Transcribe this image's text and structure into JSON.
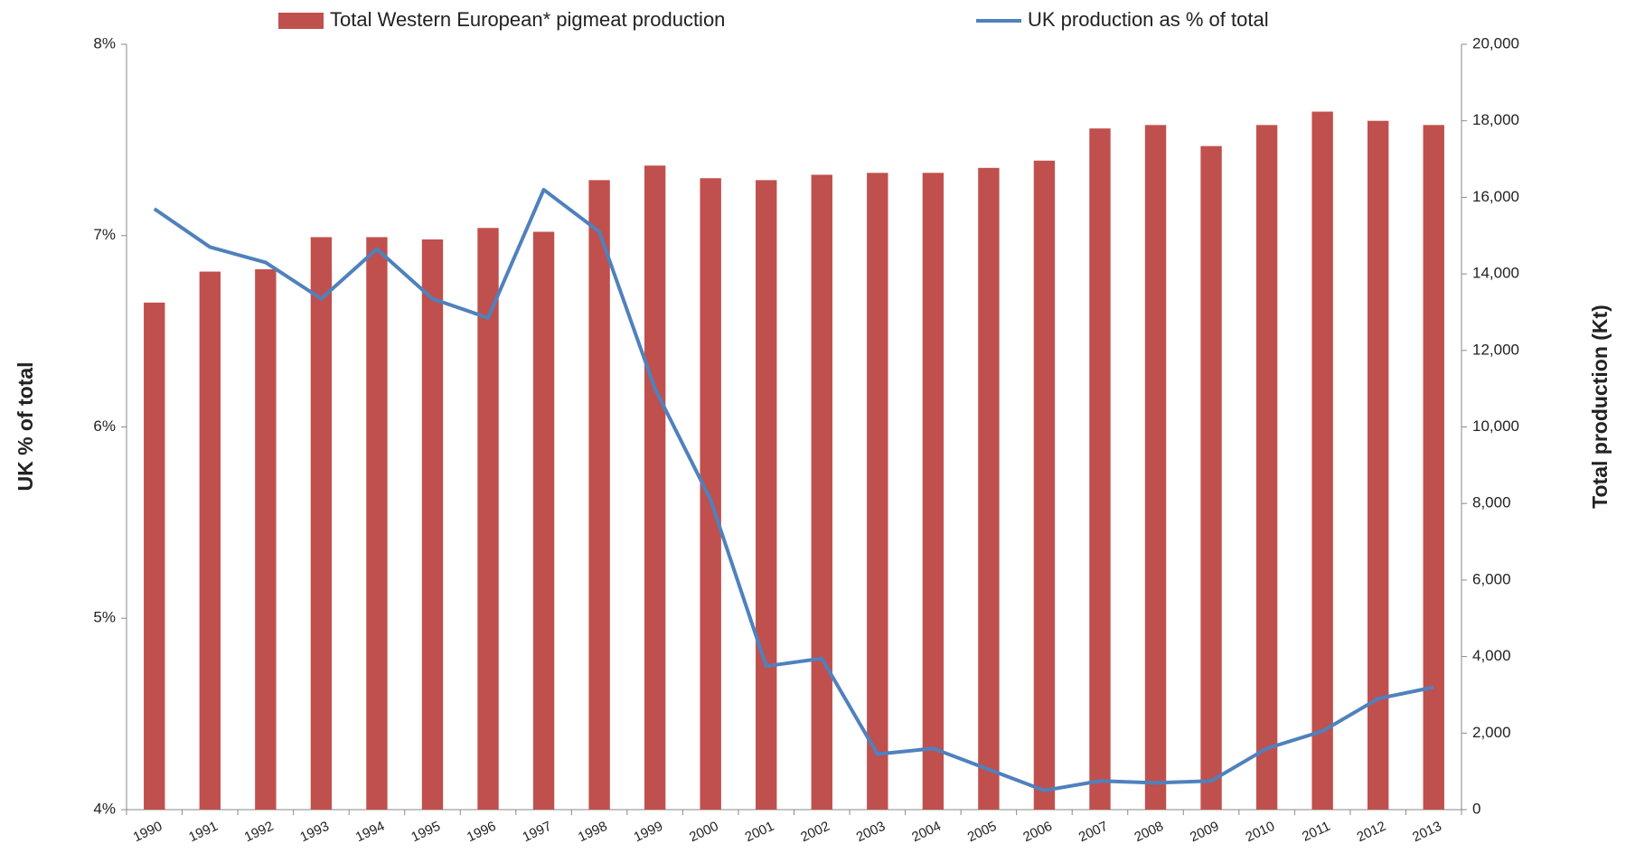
{
  "chart_data": {
    "type": "bar-line",
    "categories": [
      "1990",
      "1991",
      "1992",
      "1993",
      "1994",
      "1995",
      "1996",
      "1997",
      "1998",
      "1999",
      "2000",
      "2001",
      "2002",
      "2003",
      "2004",
      "2005",
      "2006",
      "2007",
      "2008",
      "2009",
      "2010",
      "2011",
      "2012",
      "2013"
    ],
    "series": [
      {
        "name": "Total Western European* pigmeat production",
        "type": "bar",
        "axis": "y2",
        "color": "#c0504d",
        "values": [
          13250,
          14060,
          14120,
          14960,
          14960,
          14900,
          15200,
          15100,
          16450,
          16830,
          16500,
          16450,
          16590,
          16640,
          16640,
          16770,
          16960,
          17800,
          17890,
          17340,
          17890,
          18240,
          18000,
          17890
        ]
      },
      {
        "name": "UK production as % of total",
        "type": "line",
        "axis": "y",
        "color": "#4f81bd",
        "values": [
          7.14,
          6.94,
          6.86,
          6.67,
          6.93,
          6.67,
          6.57,
          7.24,
          7.02,
          6.2,
          5.62,
          4.75,
          4.79,
          4.29,
          4.32,
          4.21,
          4.1,
          4.15,
          4.14,
          4.15,
          4.32,
          4.41,
          4.58,
          4.64
        ]
      }
    ],
    "ylabel": "UK % of total",
    "y2label": "Total production (Kt)",
    "ylim": [
      4,
      8
    ],
    "yticks": [
      {
        "value": 4,
        "label": "4%"
      },
      {
        "value": 5,
        "label": "5%"
      },
      {
        "value": 6,
        "label": "6%"
      },
      {
        "value": 7,
        "label": "7%"
      },
      {
        "value": 8,
        "label": "8%"
      }
    ],
    "y2lim": [
      0,
      20000
    ],
    "y2ticks": [
      0,
      {
        "value": 2000,
        "label": "2,000"
      },
      {
        "value": 4000,
        "label": "4,000"
      },
      {
        "value": 6000,
        "label": "6,000"
      },
      {
        "value": 8000,
        "label": "8,000"
      },
      {
        "value": 10000,
        "label": "10,000"
      },
      {
        "value": 12000,
        "label": "12,000"
      },
      {
        "value": 14000,
        "label": "14,000"
      },
      {
        "value": 16000,
        "label": "16,000"
      },
      {
        "value": 18000,
        "label": "18,000"
      },
      {
        "value": 20000,
        "label": "20,000"
      }
    ],
    "legend": "top"
  }
}
